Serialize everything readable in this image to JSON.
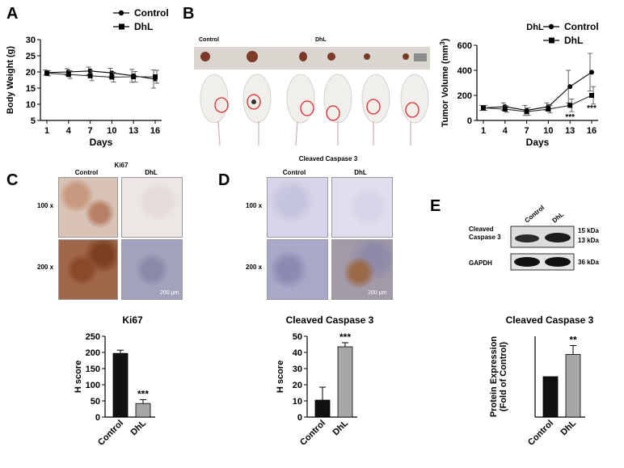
{
  "panels": {
    "A": {
      "letter": "A",
      "chart_data": {
        "type": "line",
        "ylabel": "Body Weight (g)",
        "xlabel": "Days",
        "x": [
          1,
          4,
          7,
          10,
          13,
          16
        ],
        "ylim": [
          5,
          30
        ],
        "yticks": [
          5,
          10,
          15,
          20,
          25,
          30
        ],
        "series": [
          {
            "name": "Control",
            "marker": "circle",
            "values": [
              19.8,
              20.0,
              20.3,
              19.7,
              18.8,
              17.8
            ],
            "err": [
              0.8,
              1.0,
              1.2,
              1.4,
              2.0,
              2.8
            ]
          },
          {
            "name": "DhL",
            "marker": "square",
            "values": [
              19.6,
              19.2,
              18.8,
              18.4,
              18.5,
              18.5
            ],
            "err": [
              0.8,
              1.2,
              1.5,
              1.5,
              1.6,
              2.0
            ]
          }
        ]
      }
    },
    "B": {
      "letter": "B",
      "photo_labels": {
        "control": "Control",
        "dhl": "DhL"
      },
      "chart_data": {
        "type": "line",
        "title": "DhL",
        "ylabel": "Tumor Volume (mm³)",
        "xlabel": "Days",
        "x": [
          1,
          4,
          7,
          10,
          13,
          16
        ],
        "ylim": [
          0,
          600
        ],
        "yticks": [
          0,
          200,
          400,
          600
        ],
        "series": [
          {
            "name": "Control",
            "marker": "circle",
            "values": [
              100,
              110,
              80,
              110,
              270,
              385
            ],
            "err": [
              20,
              30,
              40,
              30,
              130,
              150
            ]
          },
          {
            "name": "DhL",
            "marker": "square",
            "values": [
              100,
              90,
              70,
              90,
              120,
              200
            ],
            "err": [
              20,
              25,
              30,
              30,
              50,
              70
            ]
          }
        ],
        "annotations": [
          {
            "x": 13,
            "text": "***"
          },
          {
            "x": 16,
            "text": "***"
          }
        ]
      }
    },
    "C": {
      "letter": "C",
      "title": "Ki67",
      "col_labels": [
        "Control",
        "DhL"
      ],
      "row_labels": [
        "100 x",
        "200 x"
      ],
      "scale_bar": "200 μm",
      "chart_data": {
        "type": "bar",
        "title": "Ki67",
        "ylabel": "H score",
        "categories": [
          "Control",
          "DhL"
        ],
        "values": [
          197,
          42
        ],
        "err": [
          10,
          12
        ],
        "ylim": [
          0,
          250
        ],
        "yticks": [
          0,
          50,
          100,
          150,
          200,
          250
        ],
        "annotations": [
          {
            "category": "DhL",
            "text": "***"
          }
        ]
      }
    },
    "D": {
      "letter": "D",
      "title": "Cleaved Caspase 3",
      "col_labels": [
        "Control",
        "DhL"
      ],
      "row_labels": [
        "100 x",
        "200 x"
      ],
      "scale_bar": "200 μm",
      "chart_data": {
        "type": "bar",
        "title": "Cleaved Caspase 3",
        "ylabel": "H score",
        "categories": [
          "Control",
          "DhL"
        ],
        "values": [
          10.5,
          43.5
        ],
        "err": [
          8,
          2.5
        ],
        "ylim": [
          0,
          50
        ],
        "yticks": [
          0,
          10,
          20,
          30,
          40,
          50
        ],
        "annotations": [
          {
            "category": "DhL",
            "text": "***"
          }
        ]
      }
    },
    "E": {
      "letter": "E",
      "blot": {
        "lanes": [
          "Control",
          "DhL"
        ],
        "left_labels": [
          "Cleaved",
          "Caspase 3",
          "GAPDH"
        ],
        "right_labels": [
          "15 kDa",
          "13 kDa",
          "36 kDa"
        ]
      },
      "chart_data": {
        "type": "bar",
        "title": "Cleaved Caspase 3",
        "ylabel": [
          "Protein Expression",
          "(Fold of Control)"
        ],
        "categories": [
          "Control",
          "DhL"
        ],
        "values": [
          1.0,
          1.55
        ],
        "err": [
          0,
          0.22
        ],
        "ylim": [
          0,
          2.0
        ],
        "annotations": [
          {
            "category": "DhL",
            "text": "**"
          }
        ]
      }
    }
  },
  "colors": {
    "control_bar": "#111111",
    "dhl_bar": "#a6a6a6",
    "roi": "#e0282c"
  }
}
